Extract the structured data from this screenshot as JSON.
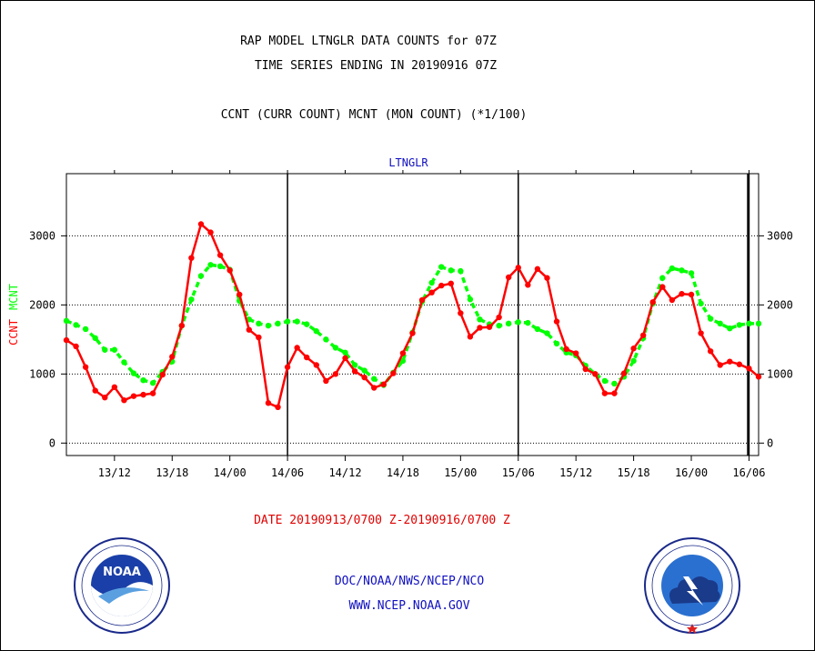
{
  "header": {
    "title_line1": "RAP MODEL LTNGLR DATA COUNTS for 07Z",
    "title_line2": "TIME SERIES ENDING IN 20190916 07Z",
    "title_line3": "CCNT (CURR COUNT) MCNT (MON COUNT) (*1/100)",
    "plot_name": "LTNGLR"
  },
  "footer": {
    "date_range": "DATE 20190913/0700 Z-20190916/0700 Z",
    "credit": "DOC/NOAA/NWS/NCEP/NCO",
    "url": "WWW.NCEP.NOAA.GOV"
  },
  "colors": {
    "ccnt": "#ff0000",
    "mcnt": "#00ff00",
    "axis": "#000000",
    "label_blue": "#1010c0"
  },
  "logos": {
    "left": "noaa-logo",
    "right": "national-weather-service-logo"
  },
  "chart_data": {
    "type": "line",
    "ylabel_left": [
      "CCNT",
      "MCNT"
    ],
    "x_tick_labels": [
      "13/12",
      "13/18",
      "14/00",
      "14/06",
      "14/12",
      "14/18",
      "15/00",
      "15/06",
      "15/12",
      "15/18",
      "16/00",
      "16/06"
    ],
    "x_tick_hours_from_start": [
      5,
      11,
      17,
      23,
      29,
      35,
      41,
      47,
      53,
      59,
      65,
      71
    ],
    "x_start": "2019-09-13 07Z",
    "x_end": "2019-09-16 07Z",
    "ylim": [
      -180,
      3900
    ],
    "y_ticks": [
      0,
      1000,
      2000,
      3000
    ],
    "grid": true,
    "series": [
      {
        "name": "CCNT",
        "values": [
          1490,
          1400,
          1100,
          760,
          660,
          810,
          620,
          680,
          700,
          720,
          990,
          1250,
          1700,
          2680,
          3170,
          3050,
          2720,
          2500,
          2150,
          1640,
          1530,
          580,
          520,
          1100,
          1380,
          1240,
          1130,
          900,
          1000,
          1230,
          1040,
          950,
          800,
          850,
          1010,
          1300,
          1590,
          2070,
          2180,
          2280,
          2310,
          1880,
          1540,
          1670,
          1680,
          1820,
          2400,
          2540,
          2290,
          2520,
          2390,
          1760,
          1360,
          1300,
          1070,
          1000,
          720,
          720,
          1010,
          1370,
          1560,
          2040,
          2260,
          2070,
          2160,
          2150,
          1590,
          1330,
          1130,
          1180,
          1140,
          1080,
          960
        ]
      },
      {
        "name": "MCNT",
        "values": [
          1770,
          1710,
          1650,
          1520,
          1350,
          1350,
          1170,
          1010,
          910,
          870,
          1030,
          1180,
          1700,
          2080,
          2420,
          2580,
          2560,
          2510,
          2060,
          1790,
          1730,
          1700,
          1730,
          1760,
          1760,
          1720,
          1620,
          1500,
          1380,
          1310,
          1130,
          1050,
          930,
          840,
          1020,
          1190,
          1600,
          2050,
          2320,
          2550,
          2500,
          2490,
          2080,
          1790,
          1720,
          1700,
          1730,
          1750,
          1740,
          1650,
          1590,
          1440,
          1310,
          1270,
          1120,
          1000,
          900,
          860,
          960,
          1190,
          1520,
          2020,
          2390,
          2530,
          2500,
          2460,
          2020,
          1800,
          1730,
          1660,
          1710,
          1730,
          1730
        ]
      }
    ]
  }
}
